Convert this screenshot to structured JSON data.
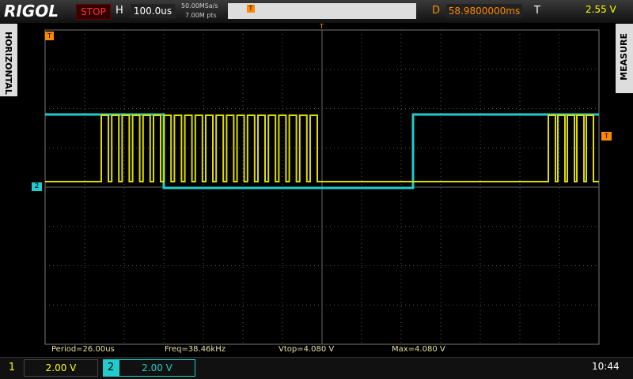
{
  "header": {
    "brand": "RIGOL",
    "run_state": "STOP",
    "timebase_label": "H",
    "timebase": "100.0us",
    "sample_rate": "50.00MSa/s",
    "memory_depth": "7.00M pts",
    "delay_label": "D",
    "delay": "58.9800000ms",
    "trigger_label": "T",
    "trigger_level": "2.55 V"
  },
  "side_tabs": {
    "left": "HORIZONTAL",
    "right": "MEASURE"
  },
  "markers": {
    "trigger_top": "T",
    "trigger_left": "T",
    "trigger_right": "T",
    "channel2": "2"
  },
  "measurements": [
    "Period=26.00us",
    "Freq=38.46kHz",
    "Vtop=4.080 V",
    "Max=4.080 V"
  ],
  "footer": {
    "ch1_number": "1",
    "ch1_scale": "2.00 V",
    "ch2_number": "2",
    "ch2_scale": "2.00 V",
    "clock": "10:44"
  }
}
